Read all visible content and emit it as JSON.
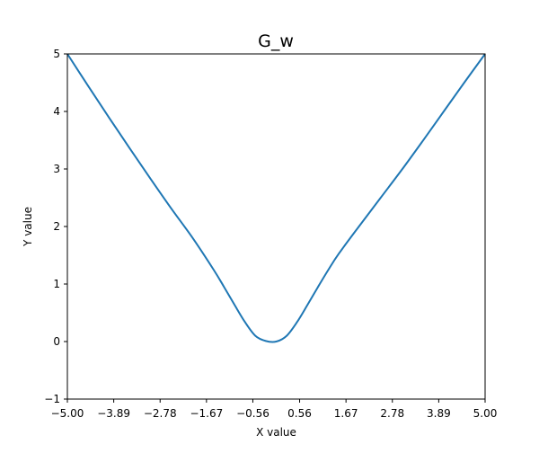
{
  "chart_data": {
    "type": "line",
    "title": "G_w",
    "xlabel": "X value",
    "ylabel": "Y value",
    "xlim": [
      -5,
      5
    ],
    "ylim": [
      -1,
      5
    ],
    "grid": false,
    "x_ticks": [
      -5.0,
      -3.89,
      -2.78,
      -1.67,
      -0.56,
      0.56,
      1.67,
      2.78,
      3.89,
      5.0
    ],
    "x_tick_labels": [
      "−5.00",
      "−3.89",
      "−2.78",
      "−1.67",
      "−0.56",
      "0.56",
      "1.67",
      "2.78",
      "3.89",
      "5.00"
    ],
    "y_ticks": [
      -1,
      0,
      1,
      2,
      3,
      4,
      5
    ],
    "y_tick_labels": [
      "−1",
      "0",
      "1",
      "2",
      "3",
      "4",
      "5"
    ],
    "series": [
      {
        "color": "#1f77b4",
        "x": [
          -5.0,
          -4.5,
          -4.0,
          -3.5,
          -3.0,
          -2.5,
          -2.0,
          -1.5,
          -1.25,
          -1.0,
          -0.75,
          -0.5,
          -0.25,
          0.0,
          0.25,
          0.5,
          0.75,
          1.0,
          1.25,
          1.5,
          2.0,
          2.5,
          3.0,
          3.5,
          4.0,
          4.5,
          5.0
        ],
        "y": [
          5.0,
          4.44,
          3.89,
          3.35,
          2.82,
          2.3,
          1.8,
          1.25,
          0.95,
          0.64,
          0.34,
          0.1,
          0.01,
          0.0,
          0.1,
          0.34,
          0.64,
          0.95,
          1.25,
          1.53,
          2.02,
          2.5,
          2.98,
          3.48,
          3.99,
          4.5,
          5.0
        ]
      }
    ]
  }
}
